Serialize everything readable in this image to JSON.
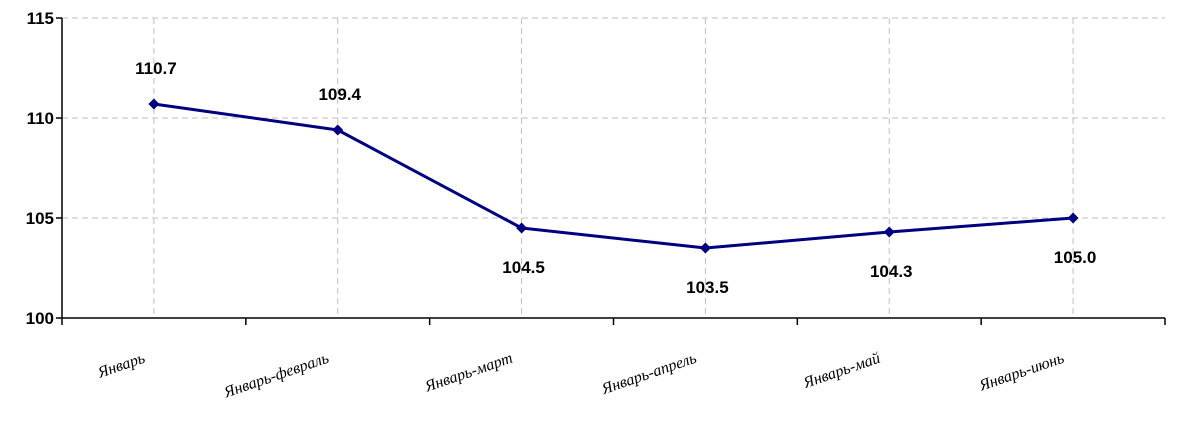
{
  "chart_data": {
    "type": "line",
    "categories": [
      "Январь",
      "Январь-февраль",
      "Январь-март",
      "Январь-апрель",
      "Январь-май",
      "Январь-июнь"
    ],
    "series": [
      {
        "values": [
          110.7,
          109.4,
          104.5,
          103.5,
          104.3,
          105.0
        ]
      }
    ],
    "data_labels": [
      "110.7",
      "109.4",
      "104.5",
      "103.5",
      "104.3",
      "105.0"
    ],
    "yticks": [
      "100",
      "105",
      "110",
      "115"
    ],
    "ylim": [
      100,
      115
    ],
    "grid": true,
    "line_color": "#000080",
    "title": "",
    "xlabel": "",
    "ylabel": ""
  }
}
